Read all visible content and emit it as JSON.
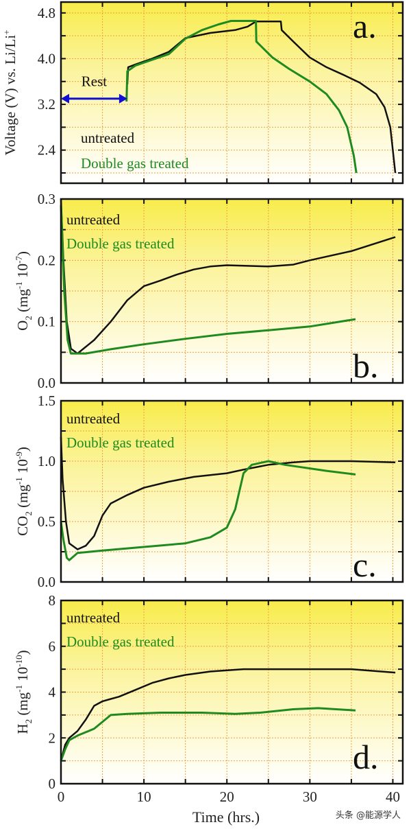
{
  "chart_data": [
    {
      "type": "line",
      "panel_label": "a.",
      "ylabel": {
        "main": "Voltage (V) vs. Li/Li",
        "sup": "+"
      },
      "xlim": [
        0,
        41.2
      ],
      "ylim": [
        1.82,
        4.99
      ],
      "yticks": [
        2.4,
        3.2,
        4.0,
        4.8
      ],
      "ytick_labels": [
        "2.4",
        "3.2",
        "4.0",
        "4.8"
      ],
      "ygrid_step": 0.4,
      "grid": true,
      "annotation": {
        "text": "Rest",
        "arrow_from": 0,
        "arrow_to": 8,
        "arrow_y": 3.3
      },
      "series": [
        {
          "name": "untreated",
          "color": "#111111",
          "points": [
            [
              8,
              3.55
            ],
            [
              8.1,
              3.85
            ],
            [
              9,
              3.9
            ],
            [
              11,
              4.0
            ],
            [
              13,
              4.12
            ],
            [
              15,
              4.36
            ],
            [
              18,
              4.45
            ],
            [
              21,
              4.5
            ],
            [
              22.5,
              4.56
            ],
            [
              23.5,
              4.65
            ],
            [
              26.5,
              4.65
            ],
            [
              26.6,
              4.5
            ],
            [
              28,
              4.3
            ],
            [
              30,
              4.02
            ],
            [
              32,
              3.85
            ],
            [
              34,
              3.72
            ],
            [
              36,
              3.58
            ],
            [
              38,
              3.38
            ],
            [
              39,
              3.15
            ],
            [
              39.7,
              2.8
            ],
            [
              40.3,
              2.0
            ]
          ]
        },
        {
          "name": "Double gas treated",
          "color": "#1f8a1f",
          "points": [
            [
              7.9,
              3.25
            ],
            [
              8,
              3.78
            ],
            [
              9,
              3.88
            ],
            [
              11,
              3.98
            ],
            [
              13,
              4.08
            ],
            [
              15,
              4.35
            ],
            [
              17,
              4.5
            ],
            [
              19,
              4.6
            ],
            [
              20.5,
              4.66
            ],
            [
              23.5,
              4.66
            ],
            [
              23.55,
              4.3
            ],
            [
              25.5,
              4.02
            ],
            [
              27.5,
              3.82
            ],
            [
              30,
              3.6
            ],
            [
              32,
              3.38
            ],
            [
              33.5,
              3.1
            ],
            [
              34.5,
              2.8
            ],
            [
              35.3,
              2.3
            ],
            [
              35.6,
              2.0
            ]
          ]
        }
      ]
    },
    {
      "type": "line",
      "panel_label": "b.",
      "ylabel": {
        "main": "O",
        "sub": "2",
        "rest": " (mg",
        "sup1": "-1",
        "mid": " 10",
        "sup2": "-7",
        "end": ")"
      },
      "xlim": [
        0,
        41.2
      ],
      "ylim": [
        0,
        0.3
      ],
      "yticks": [
        0,
        0.1,
        0.2,
        0.3
      ],
      "ytick_labels": [
        "0.0",
        "0.1",
        "0.2",
        "0.3"
      ],
      "ygrid_step": 0.05,
      "grid": true,
      "series": [
        {
          "name": "untreated",
          "color": "#111111",
          "points": [
            [
              0,
              0.3
            ],
            [
              0.3,
              0.2
            ],
            [
              0.7,
              0.1
            ],
            [
              1.2,
              0.056
            ],
            [
              2,
              0.048
            ],
            [
              4,
              0.07
            ],
            [
              6,
              0.1
            ],
            [
              8,
              0.135
            ],
            [
              10,
              0.158
            ],
            [
              12,
              0.167
            ],
            [
              14,
              0.177
            ],
            [
              16,
              0.185
            ],
            [
              18,
              0.19
            ],
            [
              20,
              0.192
            ],
            [
              25,
              0.19
            ],
            [
              28,
              0.193
            ],
            [
              30,
              0.2
            ],
            [
              35,
              0.215
            ],
            [
              40.3,
              0.238
            ]
          ]
        },
        {
          "name": "Double gas treated",
          "color": "#1f8a1f",
          "points": [
            [
              0,
              0.29
            ],
            [
              0.4,
              0.15
            ],
            [
              0.8,
              0.07
            ],
            [
              1.2,
              0.048
            ],
            [
              3,
              0.048
            ],
            [
              6,
              0.055
            ],
            [
              10,
              0.063
            ],
            [
              15,
              0.072
            ],
            [
              20,
              0.08
            ],
            [
              25,
              0.086
            ],
            [
              30,
              0.092
            ],
            [
              35.5,
              0.104
            ]
          ]
        }
      ]
    },
    {
      "type": "line",
      "panel_label": "c.",
      "ylabel": {
        "main": "CO",
        "sub": "2",
        "rest": " (mg",
        "sup1": "-1",
        "mid": " 10",
        "sup2": "-9",
        "end": ")"
      },
      "xlim": [
        0,
        41.2
      ],
      "ylim": [
        0,
        1.5
      ],
      "yticks": [
        0,
        0.5,
        1.0,
        1.5
      ],
      "ytick_labels": [
        "0.0",
        "0.5",
        "1.0",
        "1.5"
      ],
      "ygrid_step": 0.25,
      "grid": true,
      "series": [
        {
          "name": "untreated",
          "color": "#111111",
          "points": [
            [
              0,
              1.2
            ],
            [
              0.2,
              0.85
            ],
            [
              0.6,
              0.5
            ],
            [
              1,
              0.32
            ],
            [
              2,
              0.27
            ],
            [
              3,
              0.3
            ],
            [
              4,
              0.38
            ],
            [
              5,
              0.55
            ],
            [
              6,
              0.65
            ],
            [
              8,
              0.72
            ],
            [
              10,
              0.78
            ],
            [
              13,
              0.83
            ],
            [
              16,
              0.87
            ],
            [
              20,
              0.9
            ],
            [
              22,
              0.93
            ],
            [
              25,
              0.97
            ],
            [
              28,
              0.99
            ],
            [
              30,
              1.0
            ],
            [
              35,
              1.0
            ],
            [
              40.3,
              0.99
            ]
          ]
        },
        {
          "name": "Double gas treated",
          "color": "#1f8a1f",
          "points": [
            [
              0,
              0.5
            ],
            [
              0.3,
              0.35
            ],
            [
              0.7,
              0.2
            ],
            [
              1,
              0.18
            ],
            [
              2,
              0.24
            ],
            [
              5,
              0.26
            ],
            [
              10,
              0.29
            ],
            [
              15,
              0.32
            ],
            [
              18,
              0.37
            ],
            [
              20,
              0.45
            ],
            [
              21,
              0.6
            ],
            [
              22,
              0.9
            ],
            [
              23,
              0.97
            ],
            [
              25,
              1.0
            ],
            [
              27,
              0.97
            ],
            [
              29,
              0.95
            ],
            [
              32,
              0.92
            ],
            [
              35.5,
              0.89
            ]
          ]
        }
      ]
    },
    {
      "type": "line",
      "panel_label": "d.",
      "ylabel": {
        "main": "H",
        "sub": "2",
        "rest": " (mg",
        "sup1": "-1",
        "mid": " 10",
        "sup2": "-10",
        "end": ")"
      },
      "xlabel": "Time (hrs.)",
      "xticks": [
        0,
        10,
        20,
        30,
        40
      ],
      "xtick_labels": [
        "0",
        "10",
        "20",
        "30",
        "40"
      ],
      "xlim": [
        0,
        41.2
      ],
      "ylim": [
        0,
        8
      ],
      "yticks": [
        0,
        2,
        4,
        6,
        8
      ],
      "ytick_labels": [
        "0",
        "2",
        "4",
        "6",
        "8"
      ],
      "ygrid_step": 1,
      "grid": true,
      "series": [
        {
          "name": "untreated",
          "color": "#111111",
          "points": [
            [
              0,
              1.0
            ],
            [
              0.5,
              1.7
            ],
            [
              1,
              2.0
            ],
            [
              2,
              2.3
            ],
            [
              3,
              2.8
            ],
            [
              4,
              3.4
            ],
            [
              5,
              3.6
            ],
            [
              6,
              3.7
            ],
            [
              7,
              3.8
            ],
            [
              9,
              4.1
            ],
            [
              11,
              4.4
            ],
            [
              13,
              4.6
            ],
            [
              15,
              4.75
            ],
            [
              18,
              4.9
            ],
            [
              22,
              5.0
            ],
            [
              30,
              5.0
            ],
            [
              35,
              5.0
            ],
            [
              40.3,
              4.85
            ]
          ]
        },
        {
          "name": "Double gas treated",
          "color": "#1f8a1f",
          "points": [
            [
              0,
              1.0
            ],
            [
              0.5,
              1.5
            ],
            [
              1,
              1.9
            ],
            [
              2,
              2.1
            ],
            [
              3,
              2.25
            ],
            [
              4,
              2.4
            ],
            [
              5,
              2.7
            ],
            [
              6,
              3.0
            ],
            [
              8,
              3.05
            ],
            [
              12,
              3.1
            ],
            [
              17,
              3.1
            ],
            [
              21,
              3.05
            ],
            [
              24,
              3.1
            ],
            [
              28,
              3.25
            ],
            [
              31,
              3.3
            ],
            [
              35.5,
              3.2
            ]
          ]
        }
      ]
    }
  ],
  "legend": {
    "untreated": "untreated",
    "treated": "Double gas treated"
  },
  "colors": {
    "untreated": "#111111",
    "treated": "#1f8a1f",
    "grid": "#f0a040",
    "background_top": "#f8ec4a",
    "arrow": "#1010d0"
  },
  "watermark": "头条 @能源学人"
}
